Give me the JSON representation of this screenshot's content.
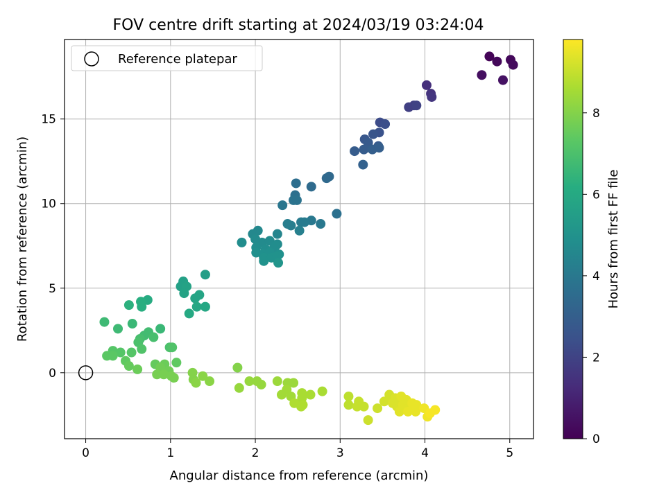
{
  "chart_data": {
    "type": "scatter",
    "title": "FOV centre drift starting at 2024/03/19 03:24:04",
    "xlabel": "Angular distance from reference (arcmin)",
    "ylabel": "Rotation from reference (arcmin)",
    "xlim": [
      -0.25,
      5.28
    ],
    "ylim": [
      -3.9,
      19.7
    ],
    "x_ticks": [
      0,
      1,
      2,
      3,
      4,
      5
    ],
    "y_ticks": [
      0,
      5,
      10,
      15
    ],
    "grid": true,
    "legend": {
      "placement": "top-left",
      "entries": [
        "Reference platepar"
      ]
    },
    "reference_point": {
      "x": 0,
      "y": 0
    },
    "colorbar": {
      "label": "Hours from first FF file",
      "colormap": "viridis",
      "range": [
        0,
        9.8
      ],
      "ticks": [
        0,
        2,
        4,
        6,
        8
      ]
    },
    "points": [
      {
        "x": 4.76,
        "y": 18.7,
        "c": 0.1
      },
      {
        "x": 4.85,
        "y": 18.4,
        "c": 0.2
      },
      {
        "x": 5.01,
        "y": 18.5,
        "c": 0.2
      },
      {
        "x": 5.04,
        "y": 18.2,
        "c": 0.3
      },
      {
        "x": 4.67,
        "y": 17.6,
        "c": 0.4
      },
      {
        "x": 4.92,
        "y": 17.3,
        "c": 0.5
      },
      {
        "x": 4.02,
        "y": 17.0,
        "c": 1.4
      },
      {
        "x": 4.07,
        "y": 16.5,
        "c": 1.5
      },
      {
        "x": 4.08,
        "y": 16.3,
        "c": 1.6
      },
      {
        "x": 3.87,
        "y": 15.8,
        "c": 1.9
      },
      {
        "x": 3.81,
        "y": 15.7,
        "c": 1.9
      },
      {
        "x": 3.9,
        "y": 15.8,
        "c": 2.0
      },
      {
        "x": 3.47,
        "y": 14.8,
        "c": 2.3
      },
      {
        "x": 3.53,
        "y": 14.7,
        "c": 2.4
      },
      {
        "x": 3.46,
        "y": 14.2,
        "c": 2.5
      },
      {
        "x": 3.39,
        "y": 14.1,
        "c": 2.6
      },
      {
        "x": 3.29,
        "y": 13.8,
        "c": 2.7
      },
      {
        "x": 3.33,
        "y": 13.6,
        "c": 2.8
      },
      {
        "x": 3.45,
        "y": 13.4,
        "c": 2.8
      },
      {
        "x": 3.17,
        "y": 13.1,
        "c": 2.9
      },
      {
        "x": 3.28,
        "y": 13.2,
        "c": 2.9
      },
      {
        "x": 3.38,
        "y": 13.2,
        "c": 3.0
      },
      {
        "x": 3.46,
        "y": 13.3,
        "c": 3.0
      },
      {
        "x": 3.27,
        "y": 12.3,
        "c": 3.1
      },
      {
        "x": 2.87,
        "y": 11.6,
        "c": 3.4
      },
      {
        "x": 2.84,
        "y": 11.5,
        "c": 3.4
      },
      {
        "x": 2.48,
        "y": 11.2,
        "c": 3.6
      },
      {
        "x": 2.66,
        "y": 11.0,
        "c": 3.5
      },
      {
        "x": 2.47,
        "y": 10.5,
        "c": 3.7
      },
      {
        "x": 2.45,
        "y": 10.2,
        "c": 3.8
      },
      {
        "x": 2.49,
        "y": 10.2,
        "c": 3.8
      },
      {
        "x": 2.32,
        "y": 9.9,
        "c": 3.9
      },
      {
        "x": 2.96,
        "y": 9.4,
        "c": 3.7
      },
      {
        "x": 2.66,
        "y": 9.0,
        "c": 4.0
      },
      {
        "x": 2.58,
        "y": 8.9,
        "c": 4.1
      },
      {
        "x": 2.54,
        "y": 8.9,
        "c": 4.1
      },
      {
        "x": 2.77,
        "y": 8.8,
        "c": 4.0
      },
      {
        "x": 2.42,
        "y": 8.7,
        "c": 4.2
      },
      {
        "x": 2.38,
        "y": 8.8,
        "c": 4.2
      },
      {
        "x": 2.52,
        "y": 8.4,
        "c": 4.3
      },
      {
        "x": 2.03,
        "y": 8.4,
        "c": 4.6
      },
      {
        "x": 1.97,
        "y": 8.2,
        "c": 4.6
      },
      {
        "x": 2.26,
        "y": 8.2,
        "c": 4.5
      },
      {
        "x": 1.84,
        "y": 7.7,
        "c": 4.8
      },
      {
        "x": 2.0,
        "y": 7.9,
        "c": 4.7
      },
      {
        "x": 2.08,
        "y": 7.7,
        "c": 4.7
      },
      {
        "x": 2.17,
        "y": 7.8,
        "c": 4.7
      },
      {
        "x": 2.26,
        "y": 7.6,
        "c": 4.7
      },
      {
        "x": 2.01,
        "y": 7.4,
        "c": 4.8
      },
      {
        "x": 2.12,
        "y": 7.3,
        "c": 4.8
      },
      {
        "x": 2.21,
        "y": 7.3,
        "c": 4.8
      },
      {
        "x": 2.24,
        "y": 7.5,
        "c": 4.8
      },
      {
        "x": 2.01,
        "y": 7.1,
        "c": 4.9
      },
      {
        "x": 2.09,
        "y": 7.0,
        "c": 4.9
      },
      {
        "x": 2.17,
        "y": 7.1,
        "c": 4.9
      },
      {
        "x": 2.28,
        "y": 7.0,
        "c": 4.9
      },
      {
        "x": 2.1,
        "y": 6.8,
        "c": 5.0
      },
      {
        "x": 2.19,
        "y": 6.8,
        "c": 5.0
      },
      {
        "x": 2.26,
        "y": 6.9,
        "c": 5.0
      },
      {
        "x": 2.1,
        "y": 6.6,
        "c": 5.0
      },
      {
        "x": 2.27,
        "y": 6.5,
        "c": 5.1
      },
      {
        "x": 1.41,
        "y": 5.8,
        "c": 5.5
      },
      {
        "x": 1.15,
        "y": 5.4,
        "c": 5.6
      },
      {
        "x": 1.12,
        "y": 5.1,
        "c": 5.6
      },
      {
        "x": 1.19,
        "y": 5.1,
        "c": 5.7
      },
      {
        "x": 1.16,
        "y": 4.7,
        "c": 5.7
      },
      {
        "x": 1.34,
        "y": 4.6,
        "c": 5.8
      },
      {
        "x": 1.29,
        "y": 4.4,
        "c": 5.8
      },
      {
        "x": 0.73,
        "y": 4.3,
        "c": 6.1
      },
      {
        "x": 0.65,
        "y": 4.2,
        "c": 6.2
      },
      {
        "x": 0.51,
        "y": 4.0,
        "c": 6.3
      },
      {
        "x": 1.31,
        "y": 3.9,
        "c": 5.9
      },
      {
        "x": 1.41,
        "y": 3.9,
        "c": 5.9
      },
      {
        "x": 0.66,
        "y": 3.9,
        "c": 6.2
      },
      {
        "x": 1.22,
        "y": 3.5,
        "c": 6.0
      },
      {
        "x": 0.22,
        "y": 3.0,
        "c": 6.7
      },
      {
        "x": 0.55,
        "y": 2.9,
        "c": 6.6
      },
      {
        "x": 0.38,
        "y": 2.6,
        "c": 6.7
      },
      {
        "x": 0.88,
        "y": 2.6,
        "c": 6.6
      },
      {
        "x": 0.74,
        "y": 2.4,
        "c": 6.8
      },
      {
        "x": 0.69,
        "y": 2.2,
        "c": 6.8
      },
      {
        "x": 0.8,
        "y": 2.1,
        "c": 6.9
      },
      {
        "x": 0.64,
        "y": 2.0,
        "c": 6.9
      },
      {
        "x": 0.62,
        "y": 1.8,
        "c": 7.0
      },
      {
        "x": 0.99,
        "y": 1.5,
        "c": 7.0
      },
      {
        "x": 1.02,
        "y": 1.5,
        "c": 7.1
      },
      {
        "x": 0.66,
        "y": 1.4,
        "c": 7.1
      },
      {
        "x": 0.32,
        "y": 1.3,
        "c": 7.2
      },
      {
        "x": 0.41,
        "y": 1.2,
        "c": 7.2
      },
      {
        "x": 0.54,
        "y": 1.2,
        "c": 7.2
      },
      {
        "x": 0.25,
        "y": 1.0,
        "c": 7.3
      },
      {
        "x": 0.32,
        "y": 1.0,
        "c": 7.3
      },
      {
        "x": 0.47,
        "y": 0.7,
        "c": 7.4
      },
      {
        "x": 1.07,
        "y": 0.6,
        "c": 7.4
      },
      {
        "x": 0.51,
        "y": 0.4,
        "c": 7.5
      },
      {
        "x": 0.82,
        "y": 0.5,
        "c": 7.5
      },
      {
        "x": 0.93,
        "y": 0.5,
        "c": 7.6
      },
      {
        "x": 0.61,
        "y": 0.2,
        "c": 7.6
      },
      {
        "x": 0.88,
        "y": 0.3,
        "c": 7.7
      },
      {
        "x": 0.98,
        "y": 0.1,
        "c": 7.7
      },
      {
        "x": 0.84,
        "y": -0.1,
        "c": 7.8
      },
      {
        "x": 0.92,
        "y": -0.1,
        "c": 7.8
      },
      {
        "x": 1.01,
        "y": -0.2,
        "c": 7.8
      },
      {
        "x": 1.04,
        "y": -0.3,
        "c": 7.8
      },
      {
        "x": 1.79,
        "y": 0.3,
        "c": 8.0
      },
      {
        "x": 1.26,
        "y": 0.0,
        "c": 8.0
      },
      {
        "x": 1.27,
        "y": -0.4,
        "c": 8.0
      },
      {
        "x": 1.3,
        "y": -0.6,
        "c": 8.1
      },
      {
        "x": 1.38,
        "y": -0.2,
        "c": 8.1
      },
      {
        "x": 1.46,
        "y": -0.5,
        "c": 8.1
      },
      {
        "x": 1.93,
        "y": -0.5,
        "c": 8.3
      },
      {
        "x": 2.02,
        "y": -0.5,
        "c": 8.3
      },
      {
        "x": 2.07,
        "y": -0.7,
        "c": 8.3
      },
      {
        "x": 1.81,
        "y": -0.9,
        "c": 8.3
      },
      {
        "x": 2.26,
        "y": -0.5,
        "c": 8.4
      },
      {
        "x": 2.38,
        "y": -0.6,
        "c": 8.4
      },
      {
        "x": 2.45,
        "y": -0.6,
        "c": 8.4
      },
      {
        "x": 2.37,
        "y": -1.0,
        "c": 8.5
      },
      {
        "x": 2.31,
        "y": -1.3,
        "c": 8.5
      },
      {
        "x": 2.42,
        "y": -1.4,
        "c": 8.5
      },
      {
        "x": 2.55,
        "y": -1.2,
        "c": 8.6
      },
      {
        "x": 2.65,
        "y": -1.3,
        "c": 8.6
      },
      {
        "x": 2.79,
        "y": -1.1,
        "c": 8.6
      },
      {
        "x": 2.55,
        "y": -1.5,
        "c": 8.6
      },
      {
        "x": 2.46,
        "y": -1.8,
        "c": 8.7
      },
      {
        "x": 2.56,
        "y": -1.9,
        "c": 8.7
      },
      {
        "x": 2.54,
        "y": -2.0,
        "c": 8.7
      },
      {
        "x": 3.1,
        "y": -1.4,
        "c": 8.9
      },
      {
        "x": 3.1,
        "y": -1.9,
        "c": 8.9
      },
      {
        "x": 3.2,
        "y": -2.0,
        "c": 9.0
      },
      {
        "x": 3.22,
        "y": -1.7,
        "c": 9.0
      },
      {
        "x": 3.28,
        "y": -2.0,
        "c": 9.0
      },
      {
        "x": 3.33,
        "y": -2.8,
        "c": 9.1
      },
      {
        "x": 3.44,
        "y": -2.1,
        "c": 9.1
      },
      {
        "x": 3.52,
        "y": -1.7,
        "c": 9.2
      },
      {
        "x": 3.58,
        "y": -1.3,
        "c": 9.2
      },
      {
        "x": 3.6,
        "y": -1.6,
        "c": 9.2
      },
      {
        "x": 3.62,
        "y": -1.8,
        "c": 9.3
      },
      {
        "x": 3.65,
        "y": -1.5,
        "c": 9.3
      },
      {
        "x": 3.67,
        "y": -2.0,
        "c": 9.3
      },
      {
        "x": 3.7,
        "y": -1.7,
        "c": 9.3
      },
      {
        "x": 3.7,
        "y": -2.3,
        "c": 9.4
      },
      {
        "x": 3.72,
        "y": -1.4,
        "c": 9.4
      },
      {
        "x": 3.74,
        "y": -1.9,
        "c": 9.4
      },
      {
        "x": 3.76,
        "y": -2.1,
        "c": 9.4
      },
      {
        "x": 3.78,
        "y": -1.6,
        "c": 9.4
      },
      {
        "x": 3.8,
        "y": -2.3,
        "c": 9.5
      },
      {
        "x": 3.85,
        "y": -1.8,
        "c": 9.5
      },
      {
        "x": 3.87,
        "y": -2.2,
        "c": 9.5
      },
      {
        "x": 3.89,
        "y": -2.3,
        "c": 9.5
      },
      {
        "x": 3.9,
        "y": -1.9,
        "c": 9.5
      },
      {
        "x": 3.99,
        "y": -2.1,
        "c": 9.6
      },
      {
        "x": 4.03,
        "y": -2.6,
        "c": 9.6
      },
      {
        "x": 4.06,
        "y": -2.4,
        "c": 9.7
      },
      {
        "x": 4.12,
        "y": -2.2,
        "c": 9.7
      }
    ]
  }
}
